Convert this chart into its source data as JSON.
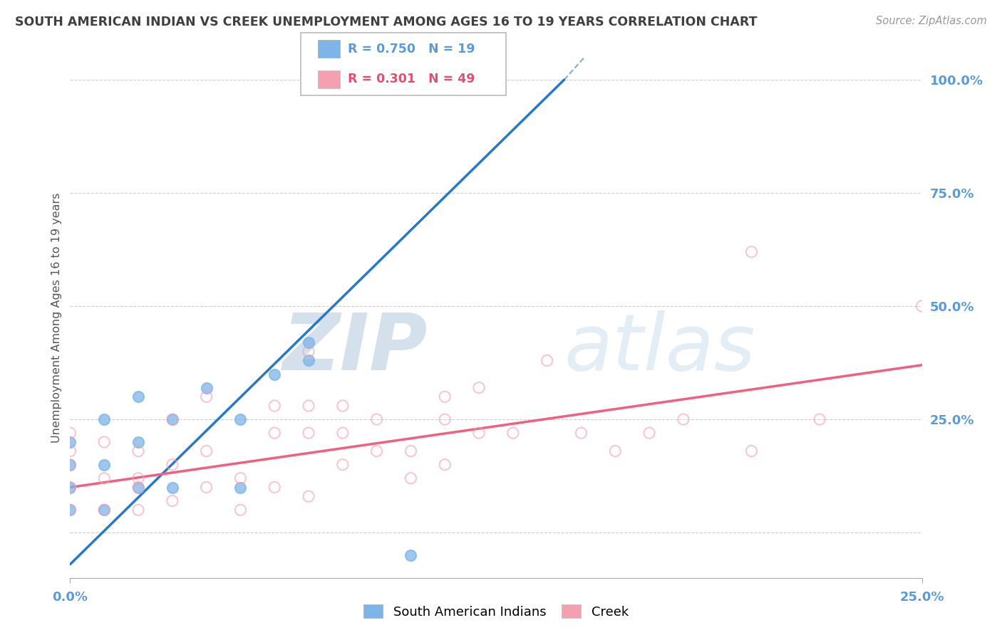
{
  "title": "SOUTH AMERICAN INDIAN VS CREEK UNEMPLOYMENT AMONG AGES 16 TO 19 YEARS CORRELATION CHART",
  "source": "Source: ZipAtlas.com",
  "watermark": "ZIPatlas",
  "legend_blue_r": "0.750",
  "legend_blue_n": "19",
  "legend_pink_r": "0.301",
  "legend_pink_n": "49",
  "blue_scatter_x": [
    0.0,
    0.0,
    0.0,
    0.0,
    0.01,
    0.01,
    0.01,
    0.02,
    0.02,
    0.02,
    0.03,
    0.03,
    0.04,
    0.05,
    0.05,
    0.06,
    0.07,
    0.1,
    0.07
  ],
  "blue_scatter_y": [
    0.05,
    0.1,
    0.15,
    0.2,
    0.05,
    0.15,
    0.25,
    0.1,
    0.2,
    0.3,
    0.1,
    0.25,
    0.32,
    0.1,
    0.25,
    0.35,
    0.38,
    -0.05,
    0.42
  ],
  "pink_scatter_x": [
    0.0,
    0.0,
    0.0,
    0.0,
    0.0,
    0.01,
    0.01,
    0.01,
    0.02,
    0.02,
    0.02,
    0.02,
    0.03,
    0.03,
    0.03,
    0.04,
    0.04,
    0.04,
    0.05,
    0.05,
    0.06,
    0.06,
    0.06,
    0.07,
    0.07,
    0.07,
    0.07,
    0.08,
    0.08,
    0.08,
    0.09,
    0.09,
    0.1,
    0.1,
    0.11,
    0.11,
    0.11,
    0.12,
    0.12,
    0.13,
    0.14,
    0.15,
    0.16,
    0.17,
    0.18,
    0.2,
    0.2,
    0.22,
    0.25
  ],
  "pink_scatter_y": [
    0.05,
    0.1,
    0.15,
    0.18,
    0.22,
    0.05,
    0.12,
    0.2,
    0.05,
    0.12,
    0.18,
    0.1,
    0.07,
    0.15,
    0.25,
    0.1,
    0.18,
    0.3,
    0.05,
    0.12,
    0.1,
    0.22,
    0.28,
    0.08,
    0.22,
    0.28,
    0.4,
    0.15,
    0.22,
    0.28,
    0.18,
    0.25,
    0.12,
    0.18,
    0.15,
    0.25,
    0.3,
    0.22,
    0.32,
    0.22,
    0.38,
    0.22,
    0.18,
    0.22,
    0.25,
    0.18,
    0.62,
    0.25,
    0.5
  ],
  "blue_line_x": [
    0.0,
    0.145
  ],
  "blue_line_y": [
    -0.07,
    1.0
  ],
  "pink_line_x": [
    0.0,
    0.25
  ],
  "pink_line_y": [
    0.1,
    0.37
  ],
  "blue_color": "#7DB5E8",
  "pink_color": "#F4A0B0",
  "blue_line_color": "#2878C8",
  "pink_line_color": "#F06080",
  "background_color": "#FFFFFF",
  "grid_color": "#C8C8C8",
  "title_color": "#404040",
  "watermark_color": "#C8D8EE",
  "xmin": 0.0,
  "xmax": 0.25,
  "ymin": -0.1,
  "ymax": 1.05,
  "yticks": [
    0.0,
    0.25,
    0.5,
    0.75,
    1.0
  ],
  "ytick_labels": [
    "",
    "25.0%",
    "50.0%",
    "75.0%",
    "100.0%"
  ],
  "xtick_labels": [
    "0.0%",
    "25.0%"
  ]
}
